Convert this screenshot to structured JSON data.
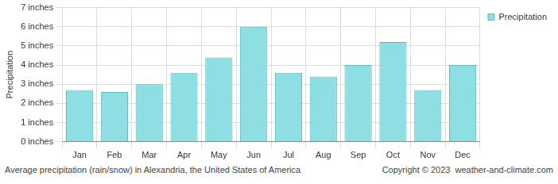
{
  "chart_data": {
    "type": "bar",
    "title": "Average precipitation (rain/snow) in Alexandria, the United States of America",
    "annotations": [
      "Copyright © 2023  weather-and-climate.com"
    ],
    "y_label": "Precipitation",
    "categories": [
      "Jan",
      "Feb",
      "Mar",
      "Apr",
      "May",
      "Jun",
      "Jul",
      "Aug",
      "Sep",
      "Oct",
      "Nov",
      "Dec"
    ],
    "series": [
      {
        "name": "Precipitation",
        "color": "#8edfe3",
        "values": [
          2.7,
          2.6,
          3.0,
          3.6,
          4.4,
          6.0,
          3.6,
          3.4,
          4.0,
          5.2,
          2.7,
          4.0
        ]
      }
    ],
    "ylim": [
      0,
      7
    ],
    "yticks": [
      {
        "value": 0,
        "label": "0 inches"
      },
      {
        "value": 1,
        "label": "1 inches"
      },
      {
        "value": 2,
        "label": "2 inches"
      },
      {
        "value": 3,
        "label": "3 inches"
      },
      {
        "value": 4,
        "label": "4 inches"
      },
      {
        "value": 5,
        "label": "5 inches"
      },
      {
        "value": 6,
        "label": "6 inches"
      },
      {
        "value": 7,
        "label": "7 inches"
      }
    ],
    "grid": true,
    "legend": "top-right"
  }
}
